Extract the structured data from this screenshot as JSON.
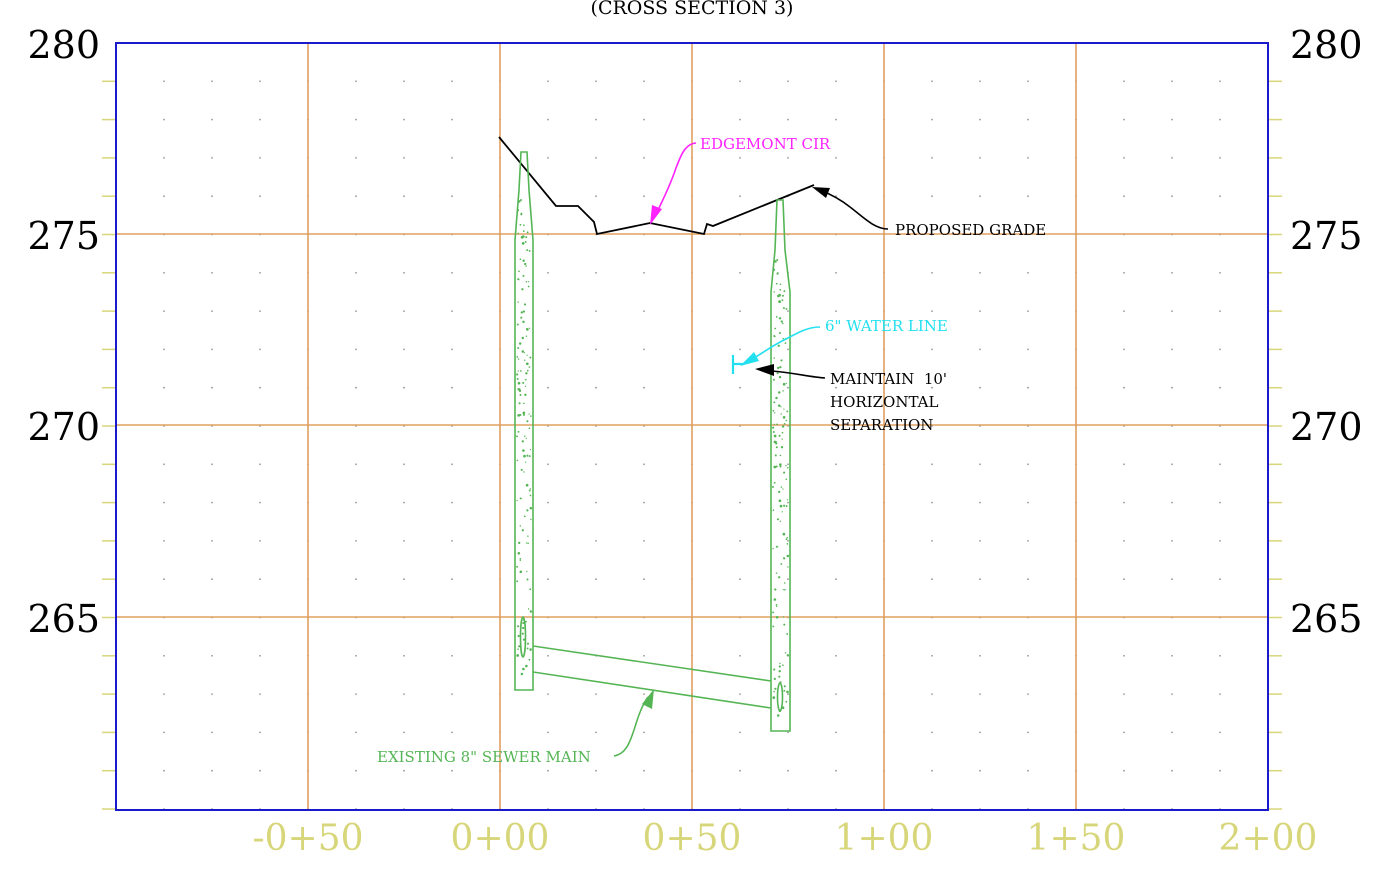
{
  "title": "(CROSS SECTION 3)",
  "axes": {
    "elevation_labels": [
      "280",
      "275",
      "270",
      "265"
    ],
    "station_labels": [
      "-0+50",
      "0+00",
      "0+50",
      "1+00",
      "1+50",
      "2+00"
    ],
    "station_label_color": "#d8d67a",
    "elevation_label_color": "#000000",
    "frame_color": "#1a1acc",
    "grid_color": "#e0a060"
  },
  "annotations": {
    "road": "EDGEMONT CIR",
    "road_color": "#ff22ff",
    "grade": "PROPOSED GRADE",
    "water": "6\" WATER LINE",
    "water_color": "#22e0f0",
    "separation_1": "MAINTAIN  10'",
    "separation_2": "HORIZONTAL",
    "separation_3": "SEPARATION",
    "sewer": "EXISTING 8\" SEWER MAIN",
    "sewer_color": "#55b555"
  }
}
